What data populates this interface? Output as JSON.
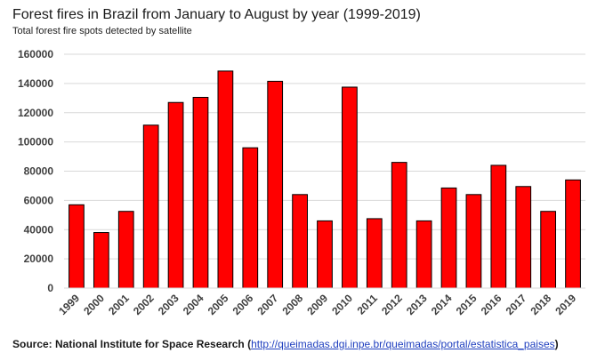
{
  "chart_data": {
    "type": "bar",
    "title": "Forest fires in Brazil from January to August by year (1999-2019)",
    "subtitle": "Total forest fire spots detected by satellite",
    "xlabel": "",
    "ylabel": "",
    "categories": [
      "1999",
      "2000",
      "2001",
      "2002",
      "2003",
      "2004",
      "2005",
      "2006",
      "2007",
      "2008",
      "2009",
      "2010",
      "2011",
      "2012",
      "2013",
      "2014",
      "2015",
      "2016",
      "2017",
      "2018",
      "2019"
    ],
    "values": [
      57000,
      38000,
      52500,
      111500,
      127000,
      130500,
      148500,
      96000,
      141500,
      64000,
      46000,
      137500,
      47500,
      86000,
      46000,
      68500,
      64000,
      84000,
      69500,
      52500,
      74000
    ],
    "ylim": [
      0,
      160000
    ],
    "yticks": [
      "0",
      "20000",
      "40000",
      "60000",
      "80000",
      "100000",
      "120000",
      "140000",
      "160000"
    ],
    "grid": true,
    "bar_color": "#ff0000",
    "bar_edge_color": "#000000",
    "source_label": "Source: National Institute for Space Research (",
    "source_url": "http://queimadas.dgi.inpe.br/queimadas/portal/estatistica_paises",
    "source_close": ")"
  }
}
